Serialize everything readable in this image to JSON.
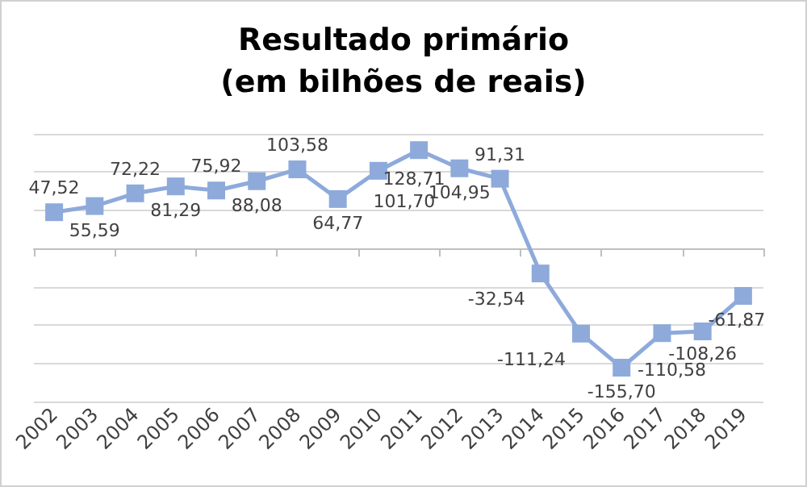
{
  "chart_data": {
    "type": "line",
    "title": "Resultado primário\n(em bilhões de reais)",
    "categories": [
      "2002",
      "2003",
      "2004",
      "2005",
      "2006",
      "2007",
      "2008",
      "2009",
      "2010",
      "2011",
      "2012",
      "2013",
      "2014",
      "2015",
      "2016",
      "2017",
      "2018",
      "2019"
    ],
    "series": [
      {
        "color": "#8eaadb",
        "values": [
          47.52,
          55.59,
          72.22,
          81.29,
          75.92,
          88.08,
          103.58,
          64.77,
          101.7,
          128.71,
          104.95,
          91.31,
          -32.54,
          -111.24,
          -155.7,
          -110.58,
          -108.26,
          -61.87
        ],
        "value_labels": [
          "47,52",
          "55,59",
          "72,22",
          "81,29",
          "75,92",
          "88,08",
          "103,58",
          "64,77",
          "101,70",
          "128,71",
          "104,95",
          "91,31",
          "-32,54",
          "-111,24",
          "-155,70",
          "-110,58",
          "-108,26",
          "-61,87"
        ]
      }
    ],
    "ylim": [
      -200,
      150
    ],
    "yticks": [
      {
        "value": -200,
        "label": null
      },
      {
        "value": -150,
        "label": null
      },
      {
        "value": -100,
        "label": null
      },
      {
        "value": -50,
        "label": null
      },
      {
        "value": 0,
        "label": null
      },
      {
        "value": 50,
        "label": null
      },
      {
        "value": 100,
        "label": null
      },
      {
        "value": 150,
        "label": null
      }
    ],
    "tick_labels": "x",
    "grid": "y",
    "marker": "square",
    "line_style": "solid"
  }
}
